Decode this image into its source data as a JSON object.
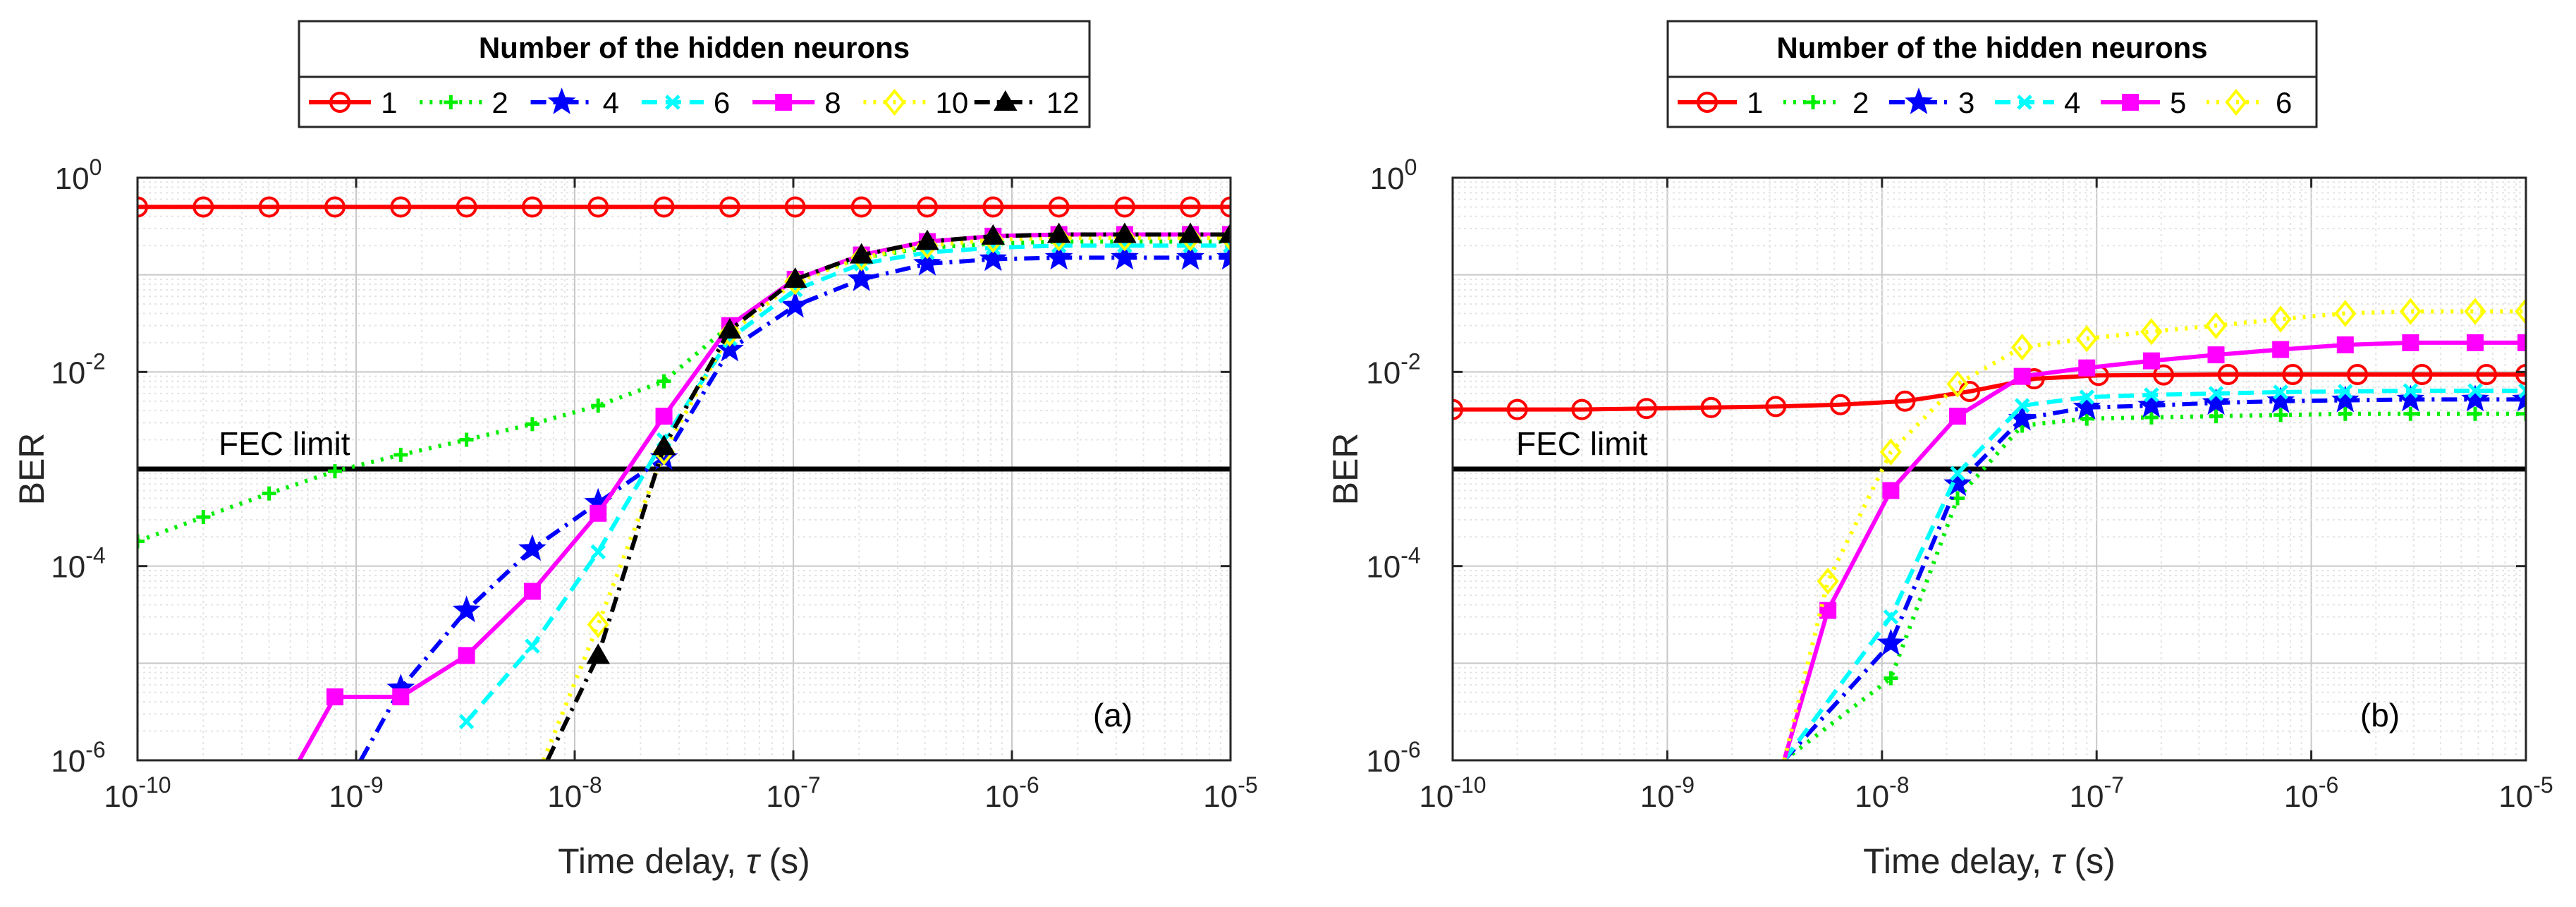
{
  "chart_data": [
    {
      "type": "line",
      "panel_label": "(a)",
      "xlabel_main": "Time delay, ",
      "xlabel_symbol": "τ",
      "xlabel_unit": " (s)",
      "ylabel": "BER",
      "xscale": "log",
      "yscale": "log",
      "xlim": [
        1e-10,
        1e-05
      ],
      "ylim": [
        1e-06,
        1
      ],
      "grid": true,
      "x_ticks": [
        1e-10,
        1e-09,
        1e-08,
        1e-07,
        1e-06,
        1e-05
      ],
      "x_tick_labels": [
        {
          "base": "10",
          "exp": "-10"
        },
        {
          "base": "10",
          "exp": "-9"
        },
        {
          "base": "10",
          "exp": "-8"
        },
        {
          "base": "10",
          "exp": "-7"
        },
        {
          "base": "10",
          "exp": "-6"
        },
        {
          "base": "10",
          "exp": "-5"
        }
      ],
      "y_ticks": [
        1e-06,
        0.0001,
        0.01,
        1
      ],
      "y_tick_labels": [
        {
          "base": "10",
          "exp": "-6"
        },
        {
          "base": "10",
          "exp": "-4"
        },
        {
          "base": "10",
          "exp": "-2"
        },
        {
          "base": "10",
          "exp": "0"
        }
      ],
      "fec_limit": {
        "label": "FEC limit",
        "value": 0.001
      },
      "legend": {
        "title": "Number of the hidden neurons",
        "placement": "top-center"
      },
      "series": [
        {
          "name": "1",
          "color": "#ff0000",
          "dash": "solid",
          "marker": "circle",
          "x": [
            1e-10,
            2e-10,
            4e-10,
            8e-10,
            1.6e-09,
            3.2e-09,
            6.4e-09,
            1.28e-08,
            2.56e-08,
            5.12e-08,
            1.02e-07,
            2.05e-07,
            4.1e-07,
            8.2e-07,
            1.64e-06,
            3.28e-06,
            6.55e-06,
            1e-05
          ],
          "y": [
            0.5,
            0.5,
            0.5,
            0.5,
            0.5,
            0.5,
            0.5,
            0.5,
            0.5,
            0.5,
            0.5,
            0.5,
            0.5,
            0.5,
            0.5,
            0.5,
            0.5,
            0.5
          ]
        },
        {
          "name": "2",
          "color": "#00ee00",
          "dash": "dot",
          "marker": "plus",
          "x": [
            1e-10,
            2e-10,
            4e-10,
            8e-10,
            1.6e-09,
            3.2e-09,
            6.4e-09,
            1.28e-08,
            2.56e-08,
            5.12e-08,
            1.02e-07,
            2.05e-07,
            4.1e-07,
            8.2e-07,
            1.64e-06,
            3.28e-06,
            6.55e-06,
            1e-05
          ],
          "y": [
            0.00018,
            0.00032,
            0.00056,
            0.00095,
            0.0014,
            0.002,
            0.0029,
            0.0045,
            0.008,
            0.03,
            0.09,
            0.15,
            0.19,
            0.21,
            0.22,
            0.22,
            0.22,
            0.22
          ]
        },
        {
          "name": "4",
          "color": "#0000ff",
          "dash": "dashdot",
          "marker": "star",
          "x": [
            1.05e-09,
            1.6e-09,
            3.2e-09,
            6.4e-09,
            1.28e-08,
            2.56e-08,
            5.12e-08,
            1.02e-07,
            2.05e-07,
            4.1e-07,
            8.2e-07,
            1.64e-06,
            3.28e-06,
            6.55e-06,
            1e-05
          ],
          "y": [
            1e-06,
            5.5e-06,
            3.5e-05,
            0.00015,
            0.00045,
            0.0013,
            0.017,
            0.048,
            0.09,
            0.13,
            0.145,
            0.15,
            0.15,
            0.15,
            0.15
          ]
        },
        {
          "name": "6",
          "color": "#00ffff",
          "dash": "dash",
          "marker": "x",
          "x": [
            3.2e-09,
            6.4e-09,
            1.28e-08,
            2.56e-08,
            5.12e-08,
            1.02e-07,
            2.05e-07,
            4.1e-07,
            8.2e-07,
            1.64e-06,
            3.28e-06,
            6.55e-06,
            1e-05
          ],
          "y": [
            2.5e-06,
            1.5e-05,
            0.00014,
            0.002,
            0.022,
            0.07,
            0.13,
            0.17,
            0.19,
            0.2,
            0.2,
            0.2,
            0.2
          ]
        },
        {
          "name": "8",
          "color": "#ff00ff",
          "dash": "solid",
          "marker": "square",
          "x": [
            5.5e-10,
            8e-10,
            1.6e-09,
            3.2e-09,
            6.4e-09,
            1.28e-08,
            2.56e-08,
            5.12e-08,
            1.02e-07,
            2.05e-07,
            4.1e-07,
            8.2e-07,
            1.64e-06,
            3.28e-06,
            6.55e-06,
            1e-05
          ],
          "y": [
            1e-06,
            4.5e-06,
            4.5e-06,
            1.2e-05,
            5.5e-05,
            0.00035,
            0.0035,
            0.03,
            0.09,
            0.16,
            0.22,
            0.25,
            0.26,
            0.26,
            0.26,
            0.26
          ]
        },
        {
          "name": "10",
          "color": "#ffff00",
          "dash": "dot",
          "marker": "diamond",
          "x": [
            7.2e-09,
            1.28e-08,
            2.56e-08,
            5.12e-08,
            1.02e-07,
            2.05e-07,
            4.1e-07,
            8.2e-07,
            1.64e-06,
            3.28e-06,
            6.55e-06,
            1e-05
          ],
          "y": [
            1e-06,
            2.5e-05,
            0.0015,
            0.025,
            0.085,
            0.15,
            0.2,
            0.23,
            0.24,
            0.24,
            0.24,
            0.24
          ]
        },
        {
          "name": "12",
          "color": "#000000",
          "dash": "dashdot",
          "marker": "triangle",
          "x": [
            7.5e-09,
            1.28e-08,
            2.56e-08,
            5.12e-08,
            1.02e-07,
            2.05e-07,
            4.1e-07,
            8.2e-07,
            1.64e-06,
            3.28e-06,
            6.55e-06,
            1e-05
          ],
          "y": [
            1e-06,
            1.2e-05,
            0.0017,
            0.027,
            0.09,
            0.16,
            0.22,
            0.25,
            0.26,
            0.26,
            0.26,
            0.26
          ]
        }
      ]
    },
    {
      "type": "line",
      "panel_label": "(b)",
      "xlabel_main": "Time delay, ",
      "xlabel_symbol": "τ",
      "xlabel_unit": " (s)",
      "ylabel": "BER",
      "xscale": "log",
      "yscale": "log",
      "xlim": [
        1e-10,
        1e-05
      ],
      "ylim": [
        1e-06,
        1
      ],
      "grid": true,
      "x_ticks": [
        1e-10,
        1e-09,
        1e-08,
        1e-07,
        1e-06,
        1e-05
      ],
      "x_tick_labels": [
        {
          "base": "10",
          "exp": "-10"
        },
        {
          "base": "10",
          "exp": "-9"
        },
        {
          "base": "10",
          "exp": "-8"
        },
        {
          "base": "10",
          "exp": "-7"
        },
        {
          "base": "10",
          "exp": "-6"
        },
        {
          "base": "10",
          "exp": "-5"
        }
      ],
      "y_ticks": [
        1e-06,
        0.0001,
        0.01,
        1
      ],
      "y_tick_labels": [
        {
          "base": "10",
          "exp": "-6"
        },
        {
          "base": "10",
          "exp": "-4"
        },
        {
          "base": "10",
          "exp": "-2"
        },
        {
          "base": "10",
          "exp": "0"
        }
      ],
      "fec_limit": {
        "label": "FEC limit",
        "value": 0.001
      },
      "legend": {
        "title": "Number of the hidden neurons",
        "placement": "top-center"
      },
      "series": [
        {
          "name": "1",
          "color": "#ff0000",
          "dash": "solid",
          "marker": "circle",
          "x": [
            1e-10,
            2e-10,
            4e-10,
            8e-10,
            1.6e-09,
            3.2e-09,
            6.4e-09,
            1.28e-08,
            2.56e-08,
            5.12e-08,
            1.02e-07,
            2.05e-07,
            4.1e-07,
            8.2e-07,
            1.64e-06,
            3.28e-06,
            6.55e-06,
            1e-05
          ],
          "y": [
            0.0041,
            0.0041,
            0.0041,
            0.0042,
            0.0043,
            0.0044,
            0.0046,
            0.005,
            0.0063,
            0.0085,
            0.0092,
            0.0093,
            0.0094,
            0.0094,
            0.0094,
            0.0094,
            0.0094,
            0.0094
          ]
        },
        {
          "name": "2",
          "color": "#00ee00",
          "dash": "dot",
          "marker": "plus",
          "x": [
            3.5e-09,
            1.1e-08,
            2.25e-08,
            4.5e-08,
            9e-08,
            1.8e-07,
            3.6e-07,
            7.2e-07,
            1.44e-06,
            2.9e-06,
            5.8e-06,
            1e-05
          ],
          "y": [
            1e-06,
            7e-06,
            0.0005,
            0.0028,
            0.0033,
            0.0034,
            0.0035,
            0.0036,
            0.0037,
            0.0037,
            0.0037,
            0.0037
          ]
        },
        {
          "name": "3",
          "color": "#0000ff",
          "dash": "dashdot",
          "marker": "star",
          "x": [
            3.5e-09,
            1.1e-08,
            2.25e-08,
            4.5e-08,
            9e-08,
            1.8e-07,
            3.6e-07,
            7.2e-07,
            1.44e-06,
            2.9e-06,
            5.8e-06,
            1e-05
          ],
          "y": [
            1e-06,
            1.6e-05,
            0.0007,
            0.0033,
            0.0043,
            0.0045,
            0.0048,
            0.005,
            0.0051,
            0.0052,
            0.0052,
            0.0052
          ]
        },
        {
          "name": "4",
          "color": "#00ffff",
          "dash": "dash",
          "marker": "x",
          "x": [
            3.5e-09,
            1.1e-08,
            2.25e-08,
            4.5e-08,
            9e-08,
            1.8e-07,
            3.6e-07,
            7.2e-07,
            1.44e-06,
            2.9e-06,
            5.8e-06,
            1e-05
          ],
          "y": [
            1e-06,
            3e-05,
            0.0009,
            0.0045,
            0.0055,
            0.0058,
            0.006,
            0.0062,
            0.0063,
            0.0064,
            0.0064,
            0.0064
          ]
        },
        {
          "name": "5",
          "color": "#ff00ff",
          "dash": "solid",
          "marker": "square",
          "x": [
            3.5e-09,
            5.6e-09,
            1.1e-08,
            2.25e-08,
            4.5e-08,
            9e-08,
            1.8e-07,
            3.6e-07,
            7.2e-07,
            1.44e-06,
            2.9e-06,
            5.8e-06,
            1e-05
          ],
          "y": [
            1e-06,
            3.5e-05,
            0.0006,
            0.0035,
            0.009,
            0.011,
            0.013,
            0.015,
            0.017,
            0.019,
            0.02,
            0.02,
            0.02
          ]
        },
        {
          "name": "6",
          "color": "#ffff00",
          "dash": "dot",
          "marker": "diamond",
          "x": [
            3.5e-09,
            5.6e-09,
            1.1e-08,
            2.25e-08,
            4.5e-08,
            9e-08,
            1.8e-07,
            3.6e-07,
            7.2e-07,
            1.44e-06,
            2.9e-06,
            5.8e-06,
            1e-05
          ],
          "y": [
            1e-06,
            7e-05,
            0.0015,
            0.0075,
            0.018,
            0.022,
            0.026,
            0.03,
            0.035,
            0.04,
            0.042,
            0.042,
            0.042
          ]
        }
      ]
    }
  ]
}
